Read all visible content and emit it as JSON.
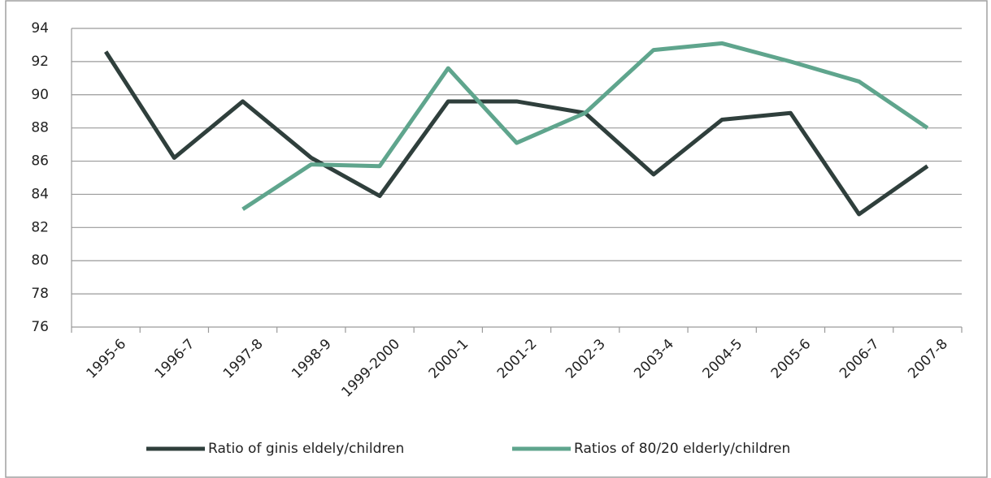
{
  "chart_data": {
    "type": "line",
    "categories": [
      "1995-6",
      "1996-7",
      "1997-8",
      "1998-9",
      "1999-2000",
      "2000-1",
      "2001-2",
      "2002-3",
      "2003-4",
      "2004-5",
      "2005-6",
      "2006-7",
      "2007-8"
    ],
    "series": [
      {
        "name": "Ratio of ginis eldely/children",
        "color": "#2f3f3c",
        "values": [
          92.6,
          86.2,
          89.6,
          86.2,
          83.9,
          89.6,
          89.6,
          88.9,
          85.2,
          88.5,
          88.9,
          82.8,
          85.7
        ]
      },
      {
        "name": "Ratios of 80/20 elderly/children",
        "color": "#5fa58d",
        "values": [
          null,
          null,
          83.1,
          85.8,
          85.7,
          91.6,
          87.1,
          88.9,
          92.7,
          93.1,
          92.0,
          90.8,
          88.0
        ]
      }
    ],
    "ylim": [
      76,
      94
    ],
    "yticks": [
      76,
      78,
      80,
      82,
      84,
      86,
      88,
      90,
      92,
      94
    ],
    "grid": true,
    "legend": "bottom"
  }
}
